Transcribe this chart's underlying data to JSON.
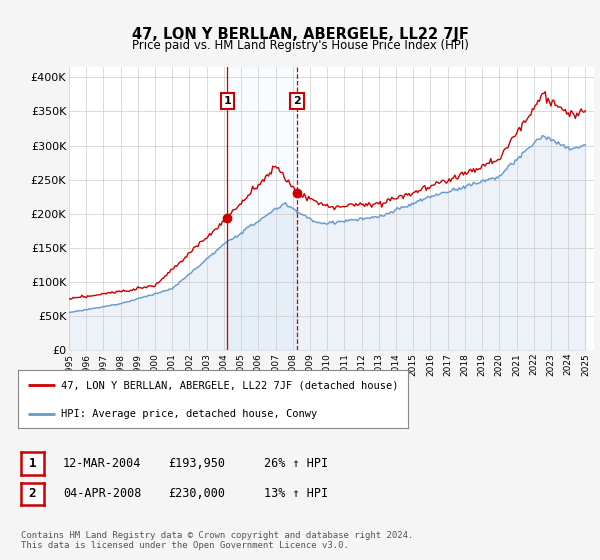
{
  "title": "47, LON Y BERLLAN, ABERGELE, LL22 7JF",
  "subtitle": "Price paid vs. HM Land Registry's House Price Index (HPI)",
  "ylabel_ticks": [
    "£0",
    "£50K",
    "£100K",
    "£150K",
    "£200K",
    "£250K",
    "£300K",
    "£350K",
    "£400K"
  ],
  "ytick_values": [
    0,
    50000,
    100000,
    150000,
    200000,
    250000,
    300000,
    350000,
    400000
  ],
  "ylim": [
    0,
    415000
  ],
  "xlim_start": 1995.0,
  "xlim_end": 2025.5,
  "xtick_years": [
    1995,
    1996,
    1997,
    1998,
    1999,
    2000,
    2001,
    2002,
    2003,
    2004,
    2005,
    2006,
    2007,
    2008,
    2009,
    2010,
    2011,
    2012,
    2013,
    2014,
    2015,
    2016,
    2017,
    2018,
    2019,
    2020,
    2021,
    2022,
    2023,
    2024,
    2025
  ],
  "hpi_color": "#6699cc",
  "price_color": "#cc0000",
  "shade_color": "#ddeeff",
  "bg_color": "#f5f5f5",
  "plot_bg": "#ffffff",
  "sale1_x": 2004.19,
  "sale1_y": 193950,
  "sale2_x": 2008.25,
  "sale2_y": 230000,
  "legend_line1": "47, LON Y BERLLAN, ABERGELE, LL22 7JF (detached house)",
  "legend_line2": "HPI: Average price, detached house, Conwy",
  "table_row1": [
    "1",
    "12-MAR-2004",
    "£193,950",
    "26% ↑ HPI"
  ],
  "table_row2": [
    "2",
    "04-APR-2008",
    "£230,000",
    "13% ↑ HPI"
  ],
  "footnote": "Contains HM Land Registry data © Crown copyright and database right 2024.\nThis data is licensed under the Open Government Licence v3.0."
}
